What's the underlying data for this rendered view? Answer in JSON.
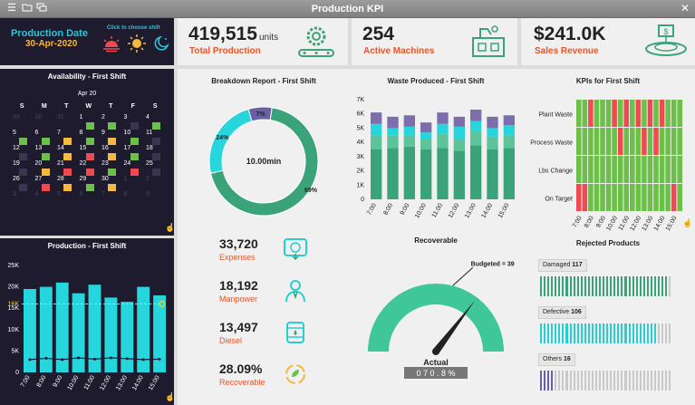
{
  "window": {
    "title": "Production KPI"
  },
  "header": {
    "date_label": "Production Date",
    "date_value": "30-Apr-2020",
    "shift_hint": "Click to choose shift"
  },
  "kpis": [
    {
      "value": "419,515",
      "units": "units",
      "label": "Total Production",
      "icon": "gear-conveyor-icon"
    },
    {
      "value": "254",
      "units": "",
      "label": "Active Machines",
      "icon": "factory-machine-icon"
    },
    {
      "value": "$241.0K",
      "units": "",
      "label": "Sales Revenue",
      "icon": "money-conveyor-icon"
    }
  ],
  "availability": {
    "title": "Availability - First Shift",
    "month": "Apr 20",
    "weekdays": [
      "S",
      "M",
      "T",
      "W",
      "T",
      "F",
      "S"
    ],
    "days": [
      {
        "d": "29",
        "s": "dim"
      },
      {
        "d": "30",
        "s": "dim"
      },
      {
        "d": "31",
        "s": "dim"
      },
      {
        "d": "1",
        "s": "g"
      },
      {
        "d": "2",
        "s": "g"
      },
      {
        "d": "3",
        "s": "b"
      },
      {
        "d": "4",
        "s": "g"
      },
      {
        "d": "5",
        "s": "g"
      },
      {
        "d": "6",
        "s": "g"
      },
      {
        "d": "7",
        "s": "y"
      },
      {
        "d": "8",
        "s": "g"
      },
      {
        "d": "9",
        "s": "y"
      },
      {
        "d": "10",
        "s": "g"
      },
      {
        "d": "11",
        "s": "b"
      },
      {
        "d": "12",
        "s": "b"
      },
      {
        "d": "13",
        "s": "g"
      },
      {
        "d": "14",
        "s": "y"
      },
      {
        "d": "15",
        "s": "r"
      },
      {
        "d": "16",
        "s": "y"
      },
      {
        "d": "17",
        "s": "g"
      },
      {
        "d": "18",
        "s": "b"
      },
      {
        "d": "19",
        "s": "b"
      },
      {
        "d": "20",
        "s": "y"
      },
      {
        "d": "21",
        "s": "r"
      },
      {
        "d": "22",
        "s": "r"
      },
      {
        "d": "23",
        "s": "g"
      },
      {
        "d": "24",
        "s": "r"
      },
      {
        "d": "25",
        "s": "b"
      },
      {
        "d": "26",
        "s": "b"
      },
      {
        "d": "27",
        "s": "r"
      },
      {
        "d": "28",
        "s": "y"
      },
      {
        "d": "29",
        "s": "g"
      },
      {
        "d": "30",
        "s": "y"
      },
      {
        "d": "1",
        "s": "dim"
      },
      {
        "d": "2",
        "s": "dim"
      },
      {
        "d": "3",
        "s": "dim"
      },
      {
        "d": "4",
        "s": "dim"
      },
      {
        "d": "5",
        "s": "dim"
      },
      {
        "d": "6",
        "s": "dim"
      },
      {
        "d": "7",
        "s": "dim"
      },
      {
        "d": "8",
        "s": "dim"
      },
      {
        "d": "9",
        "s": "dim"
      }
    ],
    "colors": {
      "g": "#6cc04a",
      "y": "#f5b841",
      "r": "#ef4a4f",
      "b": "#3a3550",
      "dim": "#2a2640"
    }
  },
  "production": {
    "title": "Production - First Shift",
    "chart_data": {
      "type": "bar",
      "categories": [
        "7:00",
        "8:00",
        "9:00",
        "10:00",
        "11:00",
        "12:00",
        "13:00",
        "14:00",
        "15:00"
      ],
      "values": [
        19.5,
        20,
        21,
        18.5,
        20.5,
        17.5,
        16.5,
        20,
        18
      ],
      "line_values": [
        3,
        3.3,
        3,
        3.4,
        3.1,
        3.4,
        3.2,
        3,
        3.1
      ],
      "target": 16,
      "target_label": "16K",
      "yticks": [
        "0",
        "5K",
        "10K",
        "15K",
        "20K",
        "25K"
      ],
      "ylim": [
        0,
        25
      ]
    }
  },
  "breakdown": {
    "title": "Breakdown Report - First Shift",
    "center": "10.00min",
    "chart_data": {
      "type": "pie",
      "labels": [
        "69%",
        "24%",
        "7%"
      ],
      "values": [
        69,
        24,
        7
      ]
    }
  },
  "waste": {
    "title": "Waste Produced - First Shift",
    "chart_data": {
      "type": "bar",
      "categories": [
        "7:00",
        "8:00",
        "9:00",
        "10:00",
        "11:00",
        "12:00",
        "13:00",
        "14:00",
        "15:00"
      ],
      "yticks": [
        "0",
        "1K",
        "2K",
        "3K",
        "4K",
        "5K",
        "6K",
        "7K"
      ],
      "ylim": [
        0,
        7
      ],
      "series": [
        {
          "values": [
            3.5,
            3.6,
            3.7,
            3.5,
            3.6,
            3.4,
            3.8,
            3.5,
            3.6
          ]
        },
        {
          "values": [
            1.0,
            0.9,
            0.8,
            0.7,
            1.0,
            0.8,
            1.0,
            0.9,
            0.9
          ]
        },
        {
          "values": [
            0.8,
            0.5,
            0.6,
            0.5,
            0.7,
            0.9,
            0.7,
            0.6,
            0.7
          ]
        },
        {
          "values": [
            0.8,
            0.8,
            0.8,
            0.7,
            0.8,
            0.7,
            0.8,
            0.8,
            0.7
          ]
        }
      ]
    }
  },
  "kpis_first_shift": {
    "title": "KPIs for First Shift",
    "rows": [
      "Plant Waste",
      "Process Waste",
      "Lbs Change",
      "On Target"
    ],
    "times": [
      "7:00",
      "8:00",
      "9:00",
      "10:00",
      "11:00",
      "12:00",
      "13:00",
      "14:00",
      "15:00"
    ],
    "grid": [
      [
        "g",
        "g",
        "r",
        "g",
        "g",
        "g",
        "r",
        "g",
        "r",
        "g",
        "r",
        "g",
        "r",
        "g",
        "r",
        "g",
        "g",
        "g"
      ],
      [
        "g",
        "g",
        "g",
        "g",
        "g",
        "g",
        "g",
        "r",
        "g",
        "g",
        "g",
        "r",
        "g",
        "r",
        "g",
        "g",
        "g",
        "g"
      ],
      [
        "g",
        "g",
        "g",
        "g",
        "g",
        "g",
        "g",
        "g",
        "g",
        "g",
        "g",
        "g",
        "g",
        "g",
        "g",
        "g",
        "g",
        "g"
      ],
      [
        "r",
        "r",
        "g",
        "g",
        "g",
        "g",
        "g",
        "g",
        "g",
        "g",
        "g",
        "g",
        "g",
        "g",
        "g",
        "g",
        "r",
        "g"
      ]
    ]
  },
  "expenses": [
    {
      "value": "33,720",
      "label": "Expenses",
      "icon": "money-down-icon"
    },
    {
      "value": "18,192",
      "label": "Manpower",
      "icon": "person-icon"
    },
    {
      "value": "13,497",
      "label": "Diesel",
      "icon": "fuel-drum-icon"
    },
    {
      "value": "28.09%",
      "label": "Recoverable",
      "icon": "recycle-icon"
    }
  ],
  "recoverable": {
    "title": "Recoverable",
    "budget_label": "Budgeted = 39",
    "actual_label": "Actual",
    "actual_value": "070.8%",
    "chart_data": {
      "type": "gauge",
      "value": 70.8,
      "budget": 39
    }
  },
  "rejected": {
    "title": "Rejected Products",
    "items": [
      {
        "label": "Damaged",
        "value": "117",
        "fill": 0.96,
        "color": "#3aa37a"
      },
      {
        "label": "Defective",
        "value": "106",
        "fill": 0.88,
        "color": "#27cfd2"
      },
      {
        "label": "Others",
        "value": "16",
        "fill": 0.12,
        "color": "#6b5fa5"
      }
    ]
  }
}
